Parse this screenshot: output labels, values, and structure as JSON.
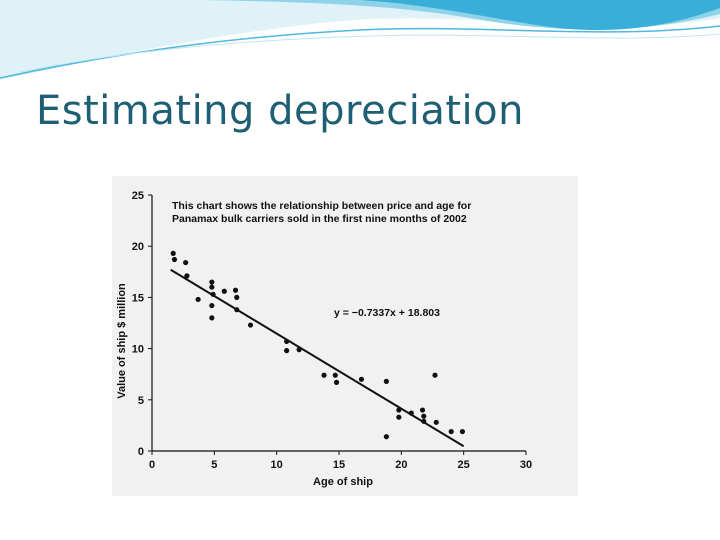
{
  "slide": {
    "title": "Estimating depreciation"
  },
  "colors": {
    "title": "#1f5f73",
    "banner_light": "#dff2f8",
    "banner_mid": "#8fd3ea",
    "banner_dark": "#39aed8",
    "chart_bg": "#f1f1f1",
    "ink": "#111111"
  },
  "chart_data": {
    "type": "scatter",
    "annotation": [
      "This chart shows the relationship between price and age for",
      "Panamax bulk carriers sold in the first nine months of 2002"
    ],
    "equation": "y = −0.7337x + 18.803",
    "xlabel": "Age of ship",
    "ylabel": "Value of ship $ million",
    "xlim": [
      0,
      30
    ],
    "ylim": [
      0,
      25
    ],
    "xticks": [
      0,
      5,
      10,
      15,
      20,
      25,
      30
    ],
    "yticks": [
      0,
      5,
      10,
      15,
      20,
      25
    ],
    "grid": false,
    "trendline": {
      "slope": -0.7337,
      "intercept": 18.803,
      "x_range": [
        1.5,
        25
      ]
    },
    "points": [
      {
        "x": 1.7,
        "y": 19.3
      },
      {
        "x": 1.8,
        "y": 18.7
      },
      {
        "x": 2.7,
        "y": 18.4
      },
      {
        "x": 2.8,
        "y": 17.1
      },
      {
        "x": 3.7,
        "y": 14.8
      },
      {
        "x": 4.8,
        "y": 16.5
      },
      {
        "x": 4.8,
        "y": 16.0
      },
      {
        "x": 4.9,
        "y": 15.3
      },
      {
        "x": 4.8,
        "y": 14.2
      },
      {
        "x": 4.8,
        "y": 13.0
      },
      {
        "x": 5.8,
        "y": 15.6
      },
      {
        "x": 6.7,
        "y": 15.7
      },
      {
        "x": 6.8,
        "y": 15.0
      },
      {
        "x": 6.8,
        "y": 13.8
      },
      {
        "x": 7.9,
        "y": 12.3
      },
      {
        "x": 10.8,
        "y": 10.7
      },
      {
        "x": 10.8,
        "y": 9.8
      },
      {
        "x": 11.8,
        "y": 9.9
      },
      {
        "x": 13.8,
        "y": 7.4
      },
      {
        "x": 14.7,
        "y": 7.4
      },
      {
        "x": 14.8,
        "y": 6.7
      },
      {
        "x": 16.8,
        "y": 7.0
      },
      {
        "x": 18.8,
        "y": 6.8
      },
      {
        "x": 18.8,
        "y": 1.4
      },
      {
        "x": 19.8,
        "y": 4.0
      },
      {
        "x": 19.8,
        "y": 3.3
      },
      {
        "x": 20.8,
        "y": 3.7
      },
      {
        "x": 21.7,
        "y": 4.0
      },
      {
        "x": 21.8,
        "y": 3.4
      },
      {
        "x": 21.8,
        "y": 2.9
      },
      {
        "x": 22.7,
        "y": 7.4
      },
      {
        "x": 22.8,
        "y": 2.8
      },
      {
        "x": 24.0,
        "y": 1.9
      },
      {
        "x": 24.9,
        "y": 1.9
      }
    ]
  }
}
